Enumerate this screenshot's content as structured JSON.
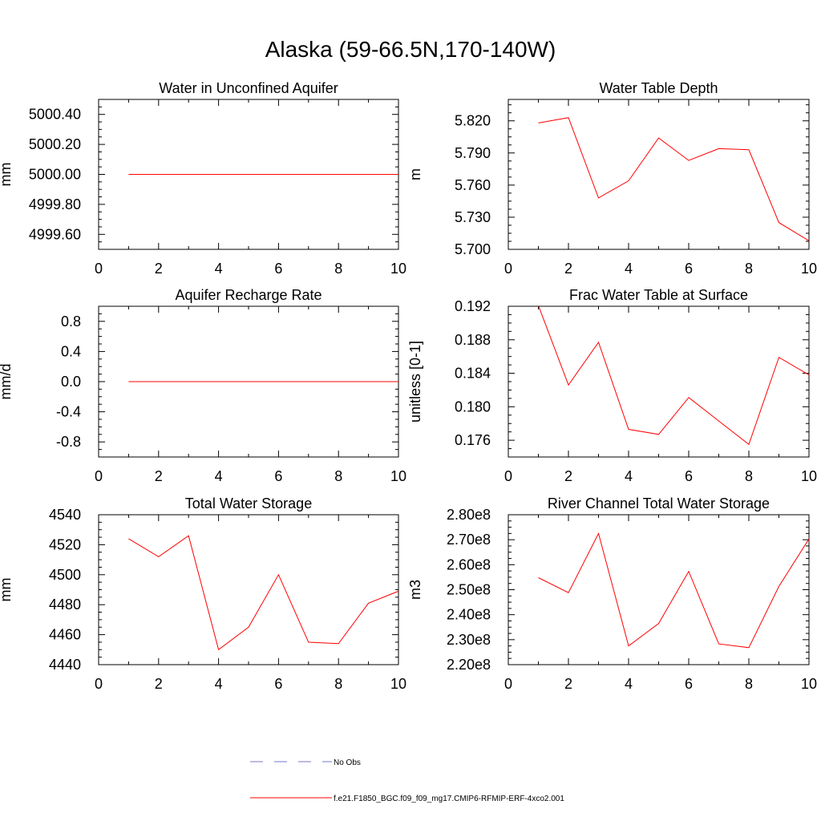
{
  "figure": {
    "title": "Alaska (59-66.5N,170-140W)",
    "line_color": "#ff0000",
    "obs_color": "#7777cc"
  },
  "legend": {
    "obs_label": "No Obs",
    "model_label": "f.e21.F1850_BGC.f09_f09_mg17.CMIP6-RFMIP-ERF-4xco2.001"
  },
  "chart_data": [
    {
      "type": "line",
      "title": "Water in Unconfined Aquifer",
      "xlabel": "",
      "ylabel": "mm",
      "xlim": [
        0,
        10
      ],
      "ylim": [
        4999.5,
        5000.5
      ],
      "xticks": [
        "0",
        "2",
        "4",
        "6",
        "8",
        "10"
      ],
      "yticks": [
        {
          "v": 4999.6,
          "label": "4999.60"
        },
        {
          "v": 4999.8,
          "label": "4999.80"
        },
        {
          "v": 5000.0,
          "label": "5000.00"
        },
        {
          "v": 5000.2,
          "label": "5000.20"
        },
        {
          "v": 5000.4,
          "label": "5000.40"
        }
      ],
      "series": [
        {
          "x": [
            1,
            2,
            3,
            4,
            5,
            6,
            7,
            8,
            9,
            10
          ],
          "values": [
            5000,
            5000,
            5000,
            5000,
            5000,
            5000,
            5000,
            5000,
            5000,
            5000
          ]
        }
      ]
    },
    {
      "type": "line",
      "title": "Water Table Depth",
      "xlabel": "",
      "ylabel": "m",
      "xlim": [
        0,
        10
      ],
      "ylim": [
        5.7,
        5.84
      ],
      "xticks": [
        "0",
        "2",
        "4",
        "6",
        "8",
        "10"
      ],
      "yticks": [
        {
          "v": 5.7,
          "label": "5.700"
        },
        {
          "v": 5.73,
          "label": "5.730"
        },
        {
          "v": 5.76,
          "label": "5.760"
        },
        {
          "v": 5.79,
          "label": "5.790"
        },
        {
          "v": 5.82,
          "label": "5.820"
        }
      ],
      "series": [
        {
          "x": [
            1,
            2,
            3,
            4,
            5,
            6,
            7,
            8,
            9,
            10
          ],
          "values": [
            5.818,
            5.823,
            5.748,
            5.764,
            5.804,
            5.783,
            5.794,
            5.793,
            5.725,
            5.708
          ]
        }
      ]
    },
    {
      "type": "line",
      "title": "Aquifer Recharge Rate",
      "xlabel": "",
      "ylabel": "mm/d",
      "xlim": [
        0,
        10
      ],
      "ylim": [
        -1.0,
        1.0
      ],
      "xticks": [
        "0",
        "2",
        "4",
        "6",
        "8",
        "10"
      ],
      "yticks": [
        {
          "v": -0.8,
          "label": "-0.8"
        },
        {
          "v": -0.4,
          "label": "-0.4"
        },
        {
          "v": 0.0,
          "label": "0.0"
        },
        {
          "v": 0.4,
          "label": "0.4"
        },
        {
          "v": 0.8,
          "label": "0.8"
        }
      ],
      "series": [
        {
          "x": [
            1,
            2,
            3,
            4,
            5,
            6,
            7,
            8,
            9,
            10
          ],
          "values": [
            0,
            0,
            0,
            0,
            0,
            0,
            0,
            0,
            0,
            0
          ]
        }
      ]
    },
    {
      "type": "line",
      "title": "Frac Water Table at Surface",
      "xlabel": "",
      "ylabel": "unitless [0-1]",
      "xlim": [
        0,
        10
      ],
      "ylim": [
        0.174,
        0.192
      ],
      "xticks": [
        "0",
        "2",
        "4",
        "6",
        "8",
        "10"
      ],
      "yticks": [
        {
          "v": 0.176,
          "label": "0.176"
        },
        {
          "v": 0.18,
          "label": "0.180"
        },
        {
          "v": 0.184,
          "label": "0.184"
        },
        {
          "v": 0.188,
          "label": "0.188"
        },
        {
          "v": 0.192,
          "label": "0.192"
        }
      ],
      "series": [
        {
          "x": [
            1,
            2,
            3,
            4,
            5,
            6,
            7,
            8,
            9,
            10
          ],
          "values": [
            0.1921,
            0.1826,
            0.1877,
            0.1773,
            0.1767,
            0.1811,
            0.1783,
            0.1755,
            0.1859,
            0.1838
          ]
        }
      ]
    },
    {
      "type": "line",
      "title": "Total Water Storage",
      "xlabel": "",
      "ylabel": "mm",
      "xlim": [
        0,
        10
      ],
      "ylim": [
        4440,
        4540
      ],
      "xticks": [
        "0",
        "2",
        "4",
        "6",
        "8",
        "10"
      ],
      "yticks": [
        {
          "v": 4440,
          "label": "4440"
        },
        {
          "v": 4460,
          "label": "4460"
        },
        {
          "v": 4480,
          "label": "4480"
        },
        {
          "v": 4500,
          "label": "4500"
        },
        {
          "v": 4520,
          "label": "4520"
        },
        {
          "v": 4540,
          "label": "4540"
        }
      ],
      "series": [
        {
          "x": [
            1,
            2,
            3,
            4,
            5,
            6,
            7,
            8,
            9,
            10
          ],
          "values": [
            4524,
            4512,
            4526,
            4450,
            4465,
            4500,
            4455,
            4454,
            4481,
            4489
          ]
        }
      ]
    },
    {
      "type": "line",
      "title": "River Channel Total Water Storage",
      "xlabel": "",
      "ylabel": "m3",
      "xlim": [
        0,
        10
      ],
      "ylim": [
        220000000,
        280000000
      ],
      "xticks": [
        "0",
        "2",
        "4",
        "6",
        "8",
        "10"
      ],
      "yticks": [
        {
          "v": 220000000,
          "label": "2.20e8"
        },
        {
          "v": 230000000,
          "label": "2.30e8"
        },
        {
          "v": 240000000,
          "label": "2.40e8"
        },
        {
          "v": 250000000,
          "label": "2.50e8"
        },
        {
          "v": 260000000,
          "label": "2.60e8"
        },
        {
          "v": 270000000,
          "label": "2.70e8"
        },
        {
          "v": 280000000,
          "label": "2.80e8"
        }
      ],
      "series": [
        {
          "x": [
            1,
            2,
            3,
            4,
            5,
            6,
            7,
            8,
            9,
            10
          ],
          "values": [
            254800000,
            248800000,
            272500000,
            227500000,
            236500000,
            257300000,
            228300000,
            226800000,
            251300000,
            270300000
          ]
        }
      ]
    }
  ]
}
